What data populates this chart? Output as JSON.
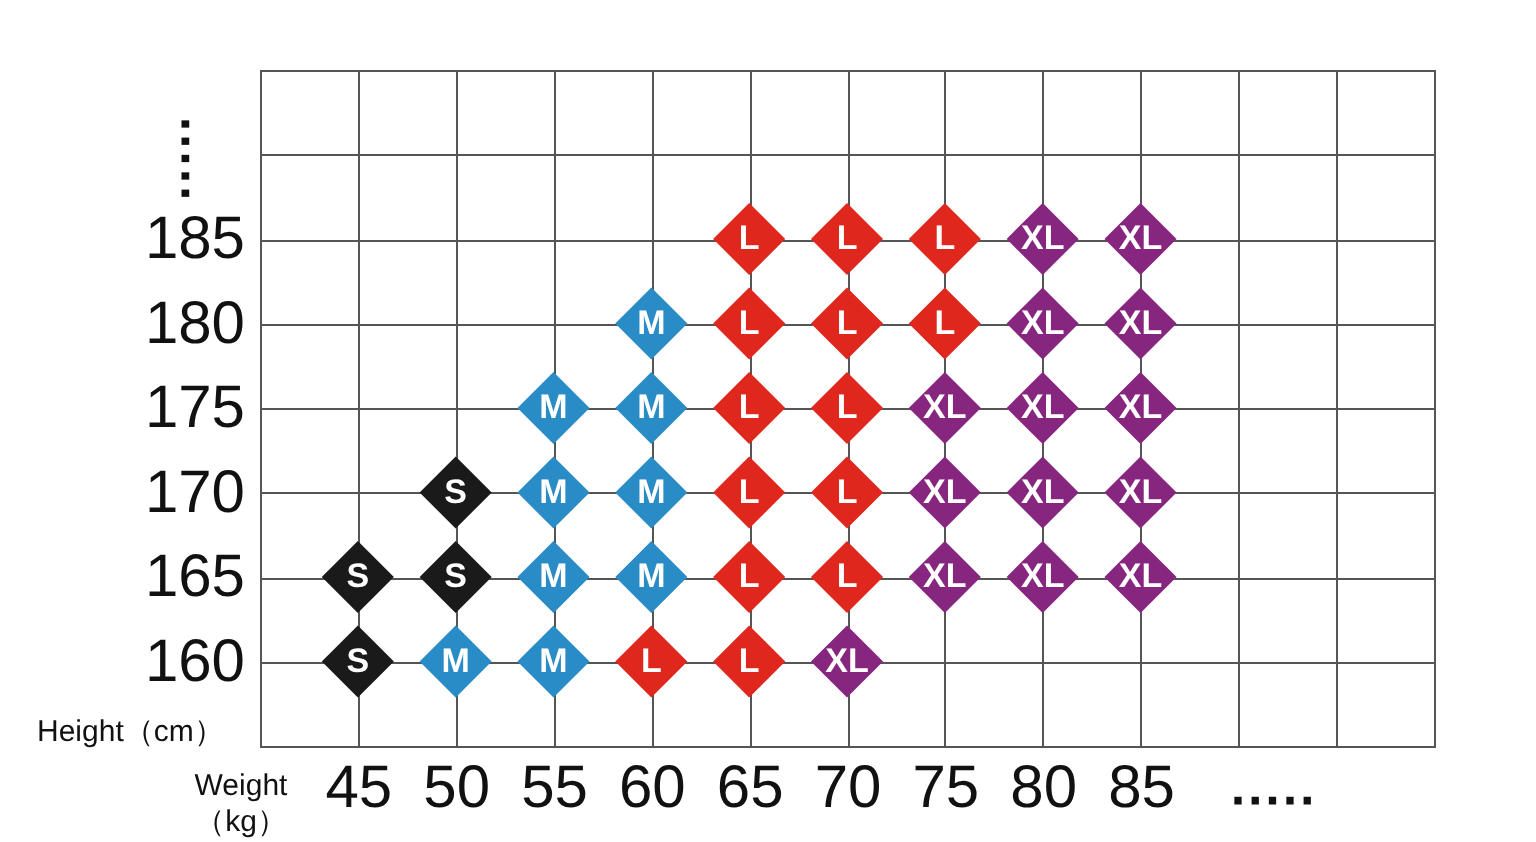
{
  "chart_data": {
    "type": "scatter",
    "xlabel": "Weight\n（kg）",
    "ylabel": "Height（cm）",
    "xlim": [
      40,
      100
    ],
    "xticks": [
      {
        "value": 40,
        "label": null
      },
      45,
      50,
      55,
      60,
      65,
      70,
      75,
      80,
      85,
      {
        "value": 90,
        "label": null
      },
      {
        "value": 95,
        "label": null
      },
      {
        "value": 100,
        "label": null
      }
    ],
    "ylim": [
      155,
      195
    ],
    "yticks": [
      {
        "value": 155,
        "label": null
      },
      160,
      165,
      170,
      175,
      180,
      185,
      {
        "value": 190,
        "label": null
      },
      {
        "value": 195,
        "label": null
      }
    ],
    "grid": true,
    "legend": false,
    "marker": "diamond",
    "annotations": [
      "·····",
      "·····"
    ],
    "series": [
      {
        "name": "S",
        "color": "#1a1a1a",
        "x": [
          45,
          45,
          50,
          50
        ],
        "values": [
          160,
          165,
          165,
          170
        ]
      },
      {
        "name": "M",
        "color": "#2a8cc6",
        "x": [
          50,
          55,
          55,
          55,
          55,
          60,
          60,
          60,
          60
        ],
        "values": [
          160,
          160,
          165,
          170,
          175,
          165,
          170,
          175,
          180
        ]
      },
      {
        "name": "L",
        "color": "#e0271d",
        "x": [
          60,
          65,
          65,
          65,
          65,
          65,
          65,
          70,
          70,
          70,
          70,
          70,
          75,
          75
        ],
        "values": [
          160,
          160,
          165,
          170,
          175,
          180,
          185,
          165,
          170,
          175,
          180,
          185,
          180,
          185
        ]
      },
      {
        "name": "XL",
        "color": "#87267f",
        "x": [
          70,
          75,
          75,
          75,
          80,
          80,
          80,
          80,
          80,
          85,
          85,
          85,
          85,
          85
        ],
        "values": [
          160,
          165,
          170,
          175,
          165,
          170,
          175,
          180,
          185,
          165,
          170,
          175,
          180,
          185
        ]
      }
    ]
  }
}
